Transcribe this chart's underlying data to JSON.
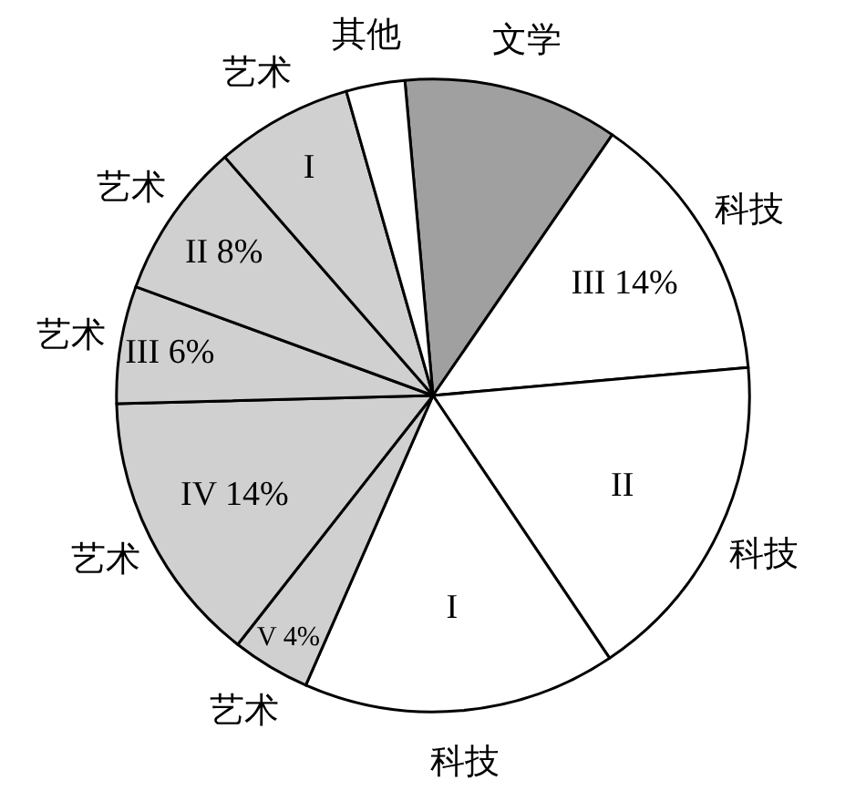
{
  "chart_data": {
    "type": "pie",
    "categories": [
      "文学",
      "科技",
      "科技",
      "科技",
      "艺术",
      "艺术",
      "艺术",
      "艺术",
      "艺术",
      "其他"
    ],
    "values": [
      11,
      14,
      17,
      16,
      4,
      14,
      6,
      8,
      7,
      3
    ],
    "colors": [
      "#a0a0a0",
      "#ffffff",
      "#ffffff",
      "#ffffff",
      "#d0d0d0",
      "#d0d0d0",
      "#d0d0d0",
      "#d0d0d0",
      "#d0d0d0",
      "#ffffff"
    ],
    "value_labels": [
      null,
      "III 14%",
      "II",
      "I",
      "V 4%",
      "IV 14%",
      "III 6%",
      "II 8%",
      "I",
      null
    ],
    "legend": false
  }
}
